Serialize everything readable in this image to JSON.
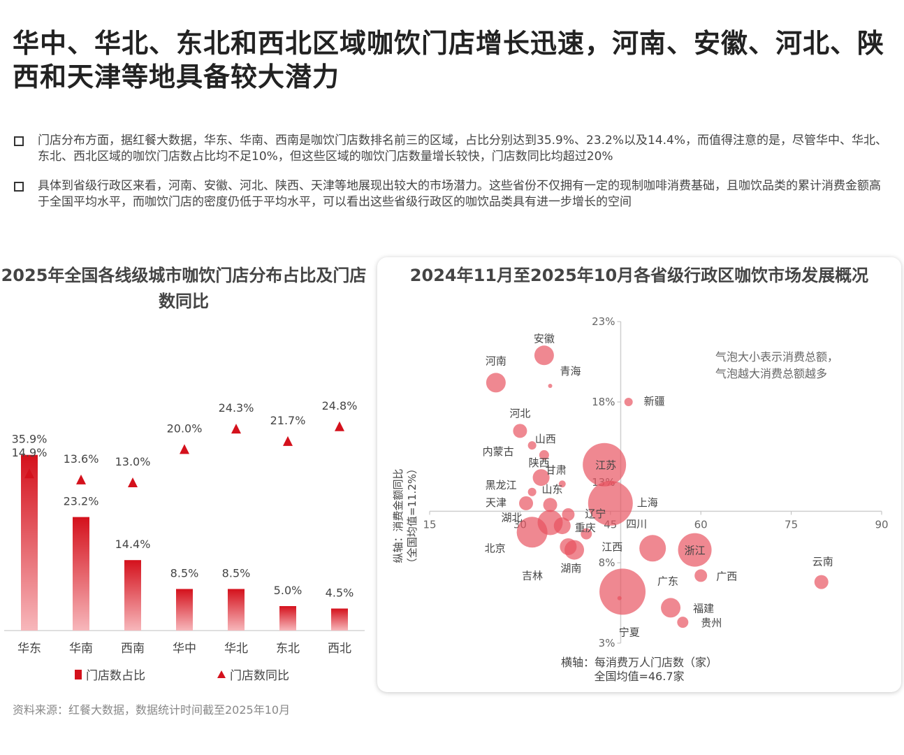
{
  "title": "华中、华北、东北和西北区域咖饮门店增长迅速，河南、安徽、河北、陕西和天津等地具备较大潜力",
  "bullets": [
    "门店分布方面，据红餐大数据，华东、华南、西南是咖饮门店数排名前三的区域，占比分别达到35.9%、23.2%以及14.4%，而值得注意的是，尽管华中、华北、东北、西北区域的咖饮门店数占比均不足10%，但这些区域的咖饮门店数量增长较快，门店数同比均超过20%",
    "具体到省级行政区来看，河南、安徽、河北、陕西、天津等地展现出较大的市场潜力。这些省份不仅拥有一定的现制咖啡消费基础，且咖饮品类的累计消费金额高于全国平均水平，而咖饮门店的密度仍低于平均水平，可以看出这些省级行政区的咖饮品类具有进一步增长的空间"
  ],
  "source": "资料来源：红餐大数据，数据统计时间截至2025年10月",
  "colors": {
    "accent": "#d4111c",
    "bubble": "#e8505d"
  },
  "chart_data": [
    {
      "type": "bar",
      "title": "2025年全国各线级城市咖饮门店分布占比及门店数同比",
      "categories": [
        "华东",
        "华南",
        "西南",
        "华中",
        "华北",
        "东北",
        "西北"
      ],
      "series": [
        {
          "name": "门店数占比",
          "kind": "bar",
          "values": [
            35.9,
            23.2,
            14.4,
            8.5,
            8.5,
            5.0,
            4.5
          ],
          "labels": [
            "35.9%",
            "23.2%",
            "14.4%",
            "8.5%",
            "8.5%",
            "5.0%",
            "4.5%"
          ]
        },
        {
          "name": "门店数同比",
          "kind": "marker",
          "values": [
            14.9,
            13.6,
            13.0,
            20.0,
            24.3,
            21.7,
            24.8
          ],
          "labels": [
            "14.9%",
            "13.6%",
            "13.0%",
            "20.0%",
            "24.3%",
            "21.7%",
            "24.8%"
          ]
        }
      ]
    },
    {
      "type": "scatter",
      "title": "2024年11月至2025年10月各省级行政区咖饮市场发展概况",
      "xlabel": "横轴：每消费万人门店数（家）",
      "xlabel_note": "全国均值=46.7家",
      "ylabel": "纵轴：消费金额同比",
      "ylabel_note": "（全国均值=11.2%）",
      "note": [
        "气泡大小表示消费总额，",
        "气泡越大消费总额越多"
      ],
      "xlim": [
        15,
        90
      ],
      "ylim": [
        3,
        23
      ],
      "x_ticks": [
        "15",
        "30",
        "45",
        "60",
        "75",
        "90"
      ],
      "y_ticks": [
        "23%",
        "18%",
        "13%",
        "8%",
        "3%"
      ],
      "cross": {
        "x": 46.7,
        "y": 11.2
      },
      "points": [
        {
          "name": "安徽",
          "x": 34,
          "y": 20.9,
          "size": 14
        },
        {
          "name": "青海",
          "x": 35,
          "y": 19.0,
          "size": 3
        },
        {
          "name": "河南",
          "x": 26,
          "y": 19.2,
          "size": 14
        },
        {
          "name": "新疆",
          "x": 48,
          "y": 18.0,
          "size": 6
        },
        {
          "name": "河北",
          "x": 30,
          "y": 16.2,
          "size": 10
        },
        {
          "name": "内蒙古",
          "x": 32,
          "y": 15.3,
          "size": 6
        },
        {
          "name": "山西",
          "x": 34,
          "y": 14.7,
          "size": 7
        },
        {
          "name": "江苏",
          "x": 44,
          "y": 14.1,
          "size": 31
        },
        {
          "name": "陕西",
          "x": 33.5,
          "y": 13.3,
          "size": 12
        },
        {
          "name": "甘肃",
          "x": 37,
          "y": 12.9,
          "size": 5
        },
        {
          "name": "上海",
          "x": 45,
          "y": 11.7,
          "size": 32
        },
        {
          "name": "黑龙江",
          "x": 32,
          "y": 12.4,
          "size": 6
        },
        {
          "name": "山东",
          "x": 35,
          "y": 11.6,
          "size": 10
        },
        {
          "name": "天津",
          "x": 31,
          "y": 11.7,
          "size": 10
        },
        {
          "name": "辽宁",
          "x": 38,
          "y": 11.0,
          "size": 9
        },
        {
          "name": "湖北",
          "x": 35,
          "y": 10.5,
          "size": 18
        },
        {
          "name": "重庆",
          "x": 37,
          "y": 10.3,
          "size": 12
        },
        {
          "name": "北京",
          "x": 32,
          "y": 9.9,
          "size": 22
        },
        {
          "name": "江西",
          "x": 41,
          "y": 9.8,
          "size": 8
        },
        {
          "name": "四川",
          "x": 52,
          "y": 8.9,
          "size": 19
        },
        {
          "name": "浙江",
          "x": 59,
          "y": 8.8,
          "size": 24
        },
        {
          "name": "吉林",
          "x": 39,
          "y": 8.8,
          "size": 14
        },
        {
          "name": "湖南",
          "x": 38,
          "y": 9.0,
          "size": 12
        },
        {
          "name": "云南",
          "x": 80,
          "y": 6.8,
          "size": 10
        },
        {
          "name": "广西",
          "x": 60,
          "y": 7.2,
          "size": 9
        },
        {
          "name": "广东",
          "x": 47,
          "y": 6.2,
          "size": 33
        },
        {
          "name": "宁夏",
          "x": 46.5,
          "y": 5.8,
          "size": 3
        },
        {
          "name": "福建",
          "x": 55,
          "y": 5.2,
          "size": 14
        },
        {
          "name": "贵州",
          "x": 57,
          "y": 4.3,
          "size": 8
        }
      ]
    }
  ],
  "legend": {
    "bar": "门店数占比",
    "marker": "门店数同比"
  }
}
